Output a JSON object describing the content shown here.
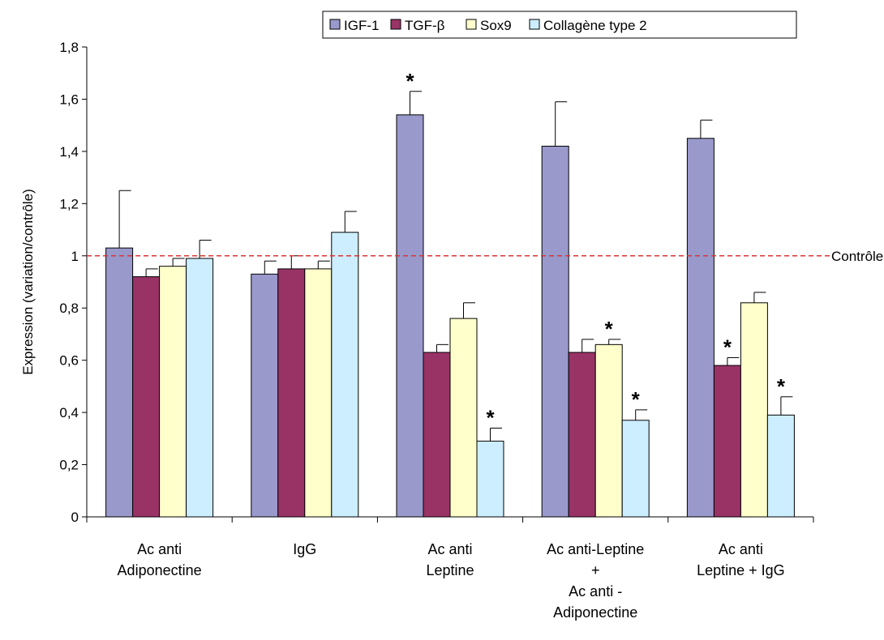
{
  "chart_data": {
    "type": "bar",
    "ylabel": "Expression (variation/contrôle)",
    "ylim": [
      0,
      1.8
    ],
    "ytick_step": 0.2,
    "ytick_labels": [
      "0",
      "0,2",
      "0,4",
      "0,6",
      "0,8",
      "1",
      "1,2",
      "1,4",
      "1,6",
      "1,8"
    ],
    "grid": false,
    "legend_position": "top-right",
    "categories": [
      [
        "Ac anti",
        "Adiponectine"
      ],
      [
        "IgG"
      ],
      [
        "Ac anti",
        "Leptine"
      ],
      [
        "Ac anti-Leptine",
        "+",
        "Ac anti -",
        "Adiponectine"
      ],
      [
        "Ac anti",
        "Leptine + IgG"
      ]
    ],
    "series": [
      {
        "name": "IGF-1",
        "color": "#9999cc",
        "values": [
          1.03,
          0.93,
          1.54,
          1.42,
          1.45
        ],
        "errors": [
          0.22,
          0.05,
          0.09,
          0.17,
          0.07
        ],
        "significant": [
          false,
          false,
          true,
          false,
          false
        ]
      },
      {
        "name": "TGF-β",
        "color": "#993366",
        "values": [
          0.92,
          0.95,
          0.63,
          0.63,
          0.58
        ],
        "errors": [
          0.03,
          0.05,
          0.03,
          0.05,
          0.03
        ],
        "significant": [
          false,
          false,
          false,
          false,
          true
        ]
      },
      {
        "name": "Sox9",
        "color": "#ffffcc",
        "values": [
          0.96,
          0.95,
          0.76,
          0.66,
          0.82
        ],
        "errors": [
          0.03,
          0.03,
          0.06,
          0.02,
          0.04
        ],
        "significant": [
          false,
          false,
          false,
          true,
          false
        ]
      },
      {
        "name": "Collagène type 2",
        "color": "#cceeff",
        "values": [
          0.99,
          1.09,
          0.29,
          0.37,
          0.39
        ],
        "errors": [
          0.07,
          0.08,
          0.05,
          0.04,
          0.07
        ],
        "significant": [
          false,
          false,
          true,
          true,
          true
        ]
      }
    ],
    "reference_line": {
      "value": 1,
      "label": "Contrôle",
      "color": "#dd3333"
    },
    "significance_marker": "*"
  }
}
